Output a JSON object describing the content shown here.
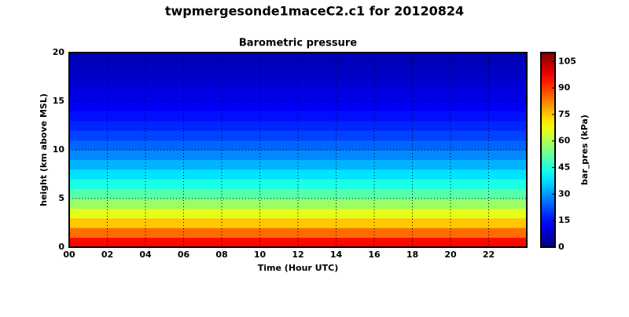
{
  "chart_data": {
    "type": "heatmap",
    "title": "twpmergesonde1maceC2.c1 for 20120824",
    "subtitle": "Barometric pressure",
    "xlabel": "Time (Hour UTC)",
    "ylabel": "height (km above MSL)",
    "colorbar_label": "bar_pres (kPa)",
    "colormap": "jet",
    "xlim": [
      0,
      24
    ],
    "xticks": [
      {
        "value": 0,
        "label": "00"
      },
      {
        "value": 2,
        "label": "02"
      },
      {
        "value": 4,
        "label": "04"
      },
      {
        "value": 6,
        "label": "06"
      },
      {
        "value": 8,
        "label": "08"
      },
      10,
      12,
      14,
      16,
      18,
      20,
      22
    ],
    "ylim": [
      0,
      20
    ],
    "yticks": [
      0,
      5,
      10,
      15,
      20
    ],
    "y": [
      0.5,
      1.5,
      2.5,
      3.5,
      4.5,
      5.5,
      6.5,
      7.5,
      8.5,
      9.5,
      10.5,
      11.5,
      12.5,
      13.5,
      14.5,
      15.5,
      16.5,
      17.5,
      18.5,
      19.5
    ],
    "values": [
      95.5,
      84.6,
      74.7,
      65.8,
      57.8,
      50.5,
      44.0,
      38.3,
      33.1,
      28.5,
      24.5,
      20.9,
      17.9,
      15.3,
      13.0,
      11.1,
      9.5,
      8.1,
      6.9,
      5.9
    ],
    "clim": [
      0,
      110
    ],
    "cticks": [
      0,
      15,
      30,
      45,
      60,
      75,
      90,
      105
    ],
    "grid": true
  }
}
